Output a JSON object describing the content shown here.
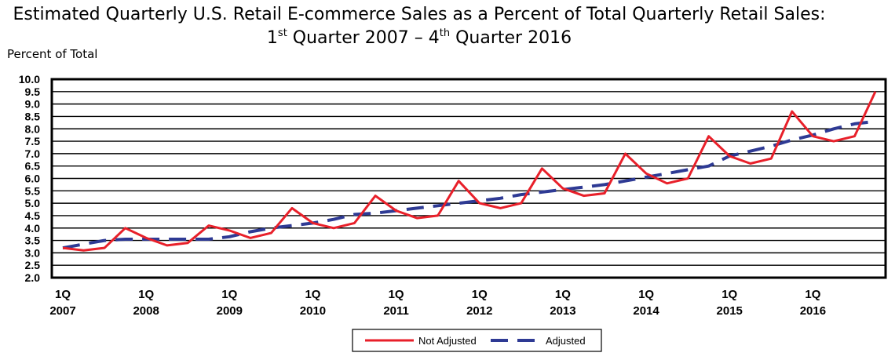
{
  "chart_data": {
    "type": "line",
    "title_line1": "Estimated Quarterly U.S. Retail E-commerce Sales as a Percent of Total Quarterly Retail Sales:",
    "title_line2_parts": [
      "1",
      "st",
      " Quarter 2007 – 4",
      "th",
      " Quarter 2016"
    ],
    "ylabel": "Percent of Total",
    "ylim": [
      2.0,
      10.0
    ],
    "yticks": [
      "2.0",
      "2.5",
      "3.0",
      "3.5",
      "4.0",
      "4.5",
      "5.0",
      "5.5",
      "6.0",
      "6.5",
      "7.0",
      "7.5",
      "8.0",
      "8.5",
      "9.0",
      "9.5",
      "10.0"
    ],
    "grid": true,
    "x_tick_labels": [
      {
        "q": "1Q",
        "year": "2007"
      },
      {
        "q": "1Q",
        "year": "2008"
      },
      {
        "q": "1Q",
        "year": "2009"
      },
      {
        "q": "1Q",
        "year": "2010"
      },
      {
        "q": "1Q",
        "year": "2011"
      },
      {
        "q": "1Q",
        "year": "2012"
      },
      {
        "q": "1Q",
        "year": "2013"
      },
      {
        "q": "1Q",
        "year": "2014"
      },
      {
        "q": "1Q",
        "year": "2015"
      },
      {
        "q": "1Q",
        "year": "2016"
      }
    ],
    "x_quarters": [
      "2007Q1",
      "2007Q2",
      "2007Q3",
      "2007Q4",
      "2008Q1",
      "2008Q2",
      "2008Q3",
      "2008Q4",
      "2009Q1",
      "2009Q2",
      "2009Q3",
      "2009Q4",
      "2010Q1",
      "2010Q2",
      "2010Q3",
      "2010Q4",
      "2011Q1",
      "2011Q2",
      "2011Q3",
      "2011Q4",
      "2012Q1",
      "2012Q2",
      "2012Q3",
      "2012Q4",
      "2013Q1",
      "2013Q2",
      "2013Q3",
      "2013Q4",
      "2014Q1",
      "2014Q2",
      "2014Q3",
      "2014Q4",
      "2015Q1",
      "2015Q2",
      "2015Q3",
      "2015Q4",
      "2016Q1",
      "2016Q2",
      "2016Q3",
      "2016Q4"
    ],
    "series": [
      {
        "name": "Not Adjusted",
        "color": "#e8202a",
        "dash": "solid",
        "values": [
          3.2,
          3.1,
          3.2,
          4.0,
          3.6,
          3.3,
          3.4,
          4.1,
          3.9,
          3.6,
          3.8,
          4.8,
          4.2,
          4.0,
          4.2,
          5.3,
          4.7,
          4.4,
          4.5,
          5.9,
          5.0,
          4.8,
          5.0,
          6.4,
          5.6,
          5.3,
          5.4,
          7.0,
          6.2,
          5.8,
          6.0,
          7.7,
          6.9,
          6.6,
          6.8,
          8.7,
          7.7,
          7.5,
          7.7,
          9.5
        ]
      },
      {
        "name": "Adjusted",
        "color": "#2e3a94",
        "dash": "dashed",
        "values": [
          3.2,
          3.35,
          3.5,
          3.55,
          3.55,
          3.55,
          3.55,
          3.55,
          3.65,
          3.85,
          4.0,
          4.1,
          4.2,
          4.35,
          4.55,
          4.6,
          4.7,
          4.8,
          4.9,
          5.0,
          5.1,
          5.2,
          5.35,
          5.45,
          5.55,
          5.65,
          5.75,
          5.9,
          6.05,
          6.2,
          6.35,
          6.5,
          6.9,
          7.1,
          7.3,
          7.55,
          7.75,
          8.0,
          8.2,
          8.3
        ]
      }
    ],
    "legend_position": "bottom-center"
  }
}
